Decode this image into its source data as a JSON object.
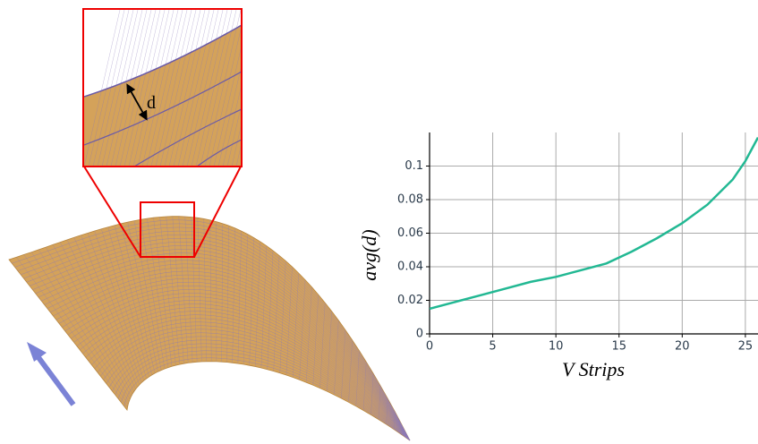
{
  "figure": {
    "inset_label": "d"
  },
  "chart_data": {
    "type": "line",
    "x_label": "V Strips",
    "y_label": "avg(d)",
    "x": [
      0,
      2,
      4,
      6,
      8,
      10,
      12,
      14,
      16,
      18,
      20,
      22,
      24,
      25,
      26
    ],
    "values": [
      0.015,
      0.019,
      0.023,
      0.027,
      0.031,
      0.034,
      0.038,
      0.042,
      0.049,
      0.057,
      0.066,
      0.077,
      0.092,
      0.103,
      0.117
    ],
    "color": "#22b893",
    "xlim": [
      0,
      26
    ],
    "ylim": [
      0,
      0.12
    ],
    "xticks": [
      0,
      5,
      10,
      15,
      20,
      25
    ],
    "yticks": [
      0,
      0.02,
      0.04,
      0.06,
      0.08,
      0.1
    ],
    "grid": true
  }
}
